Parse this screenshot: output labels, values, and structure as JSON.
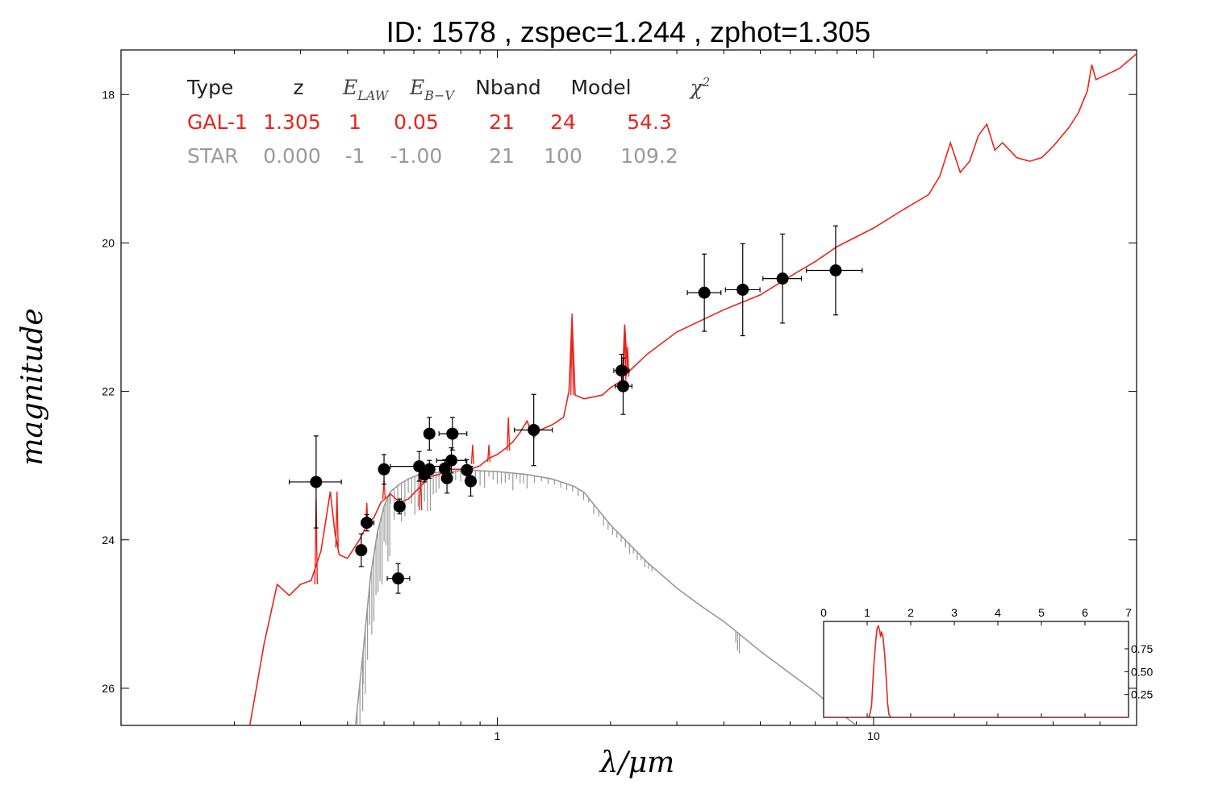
{
  "title": "ID:  1578  , zspec=1.244 , zphot=1.305",
  "chart_data": {
    "type": "scatter",
    "xlabel": "λ/μm",
    "ylabel": "magnitude",
    "xscale": "log",
    "xlim": [
      0.1,
      50
    ],
    "ylim": [
      26.5,
      17.4
    ],
    "y_inverted": true,
    "xticks": [
      {
        "value": 1,
        "label": "1"
      },
      {
        "value": 10,
        "label": "10"
      }
    ],
    "yticks": [
      {
        "value": 18,
        "label": "18"
      },
      {
        "value": 20,
        "label": "20"
      },
      {
        "value": 22,
        "label": "22"
      },
      {
        "value": 24,
        "label": "24"
      },
      {
        "value": 26,
        "label": "26"
      }
    ],
    "grid": false,
    "fit_table": {
      "headers": [
        "Type",
        "z",
        "E_LAW",
        "E_B-V",
        "Nband",
        "Model",
        "χ²"
      ],
      "header_math": {
        "elaw_base": "E",
        "elaw_sub": "LAW",
        "ebv_base": "E",
        "ebv_sub": "B−V",
        "chi_base": "χ",
        "chi_sup": "2"
      },
      "rows": [
        {
          "color": "#e8241c",
          "values": [
            "GAL-1",
            "1.305",
            "1",
            "0.05",
            "21",
            "24",
            "54.3"
          ]
        },
        {
          "color": "#999999",
          "values": [
            "STAR",
            "0.000",
            "-1",
            "-1.00",
            "21",
            "100",
            "109.2"
          ]
        }
      ]
    },
    "observations": [
      {
        "x": 0.33,
        "y": 23.22,
        "xerr": [
          0.05,
          0.055
        ],
        "yerr": 0.62
      },
      {
        "x": 0.435,
        "y": 24.14,
        "xerr": [
          0.01,
          0.01
        ],
        "yerr": 0.22
      },
      {
        "x": 0.45,
        "y": 23.77,
        "xerr": [
          0.015,
          0.02
        ],
        "yerr": 0.11
      },
      {
        "x": 0.5,
        "y": 23.05,
        "xerr": [
          0.01,
          0.01
        ],
        "yerr": 0.2
      },
      {
        "x": 0.545,
        "y": 24.52,
        "xerr": [
          0.035,
          0.04
        ],
        "yerr": 0.2
      },
      {
        "x": 0.55,
        "y": 23.55,
        "xerr": [
          0.01,
          0.01
        ],
        "yerr": 0.1
      },
      {
        "x": 0.62,
        "y": 23.01,
        "xerr": [
          0.1,
          0.1
        ],
        "yerr": 0.2
      },
      {
        "x": 0.64,
        "y": 23.12,
        "xerr": [
          0.02,
          0.02
        ],
        "yerr": 0.1
      },
      {
        "x": 0.66,
        "y": 23.05,
        "xerr": [
          0.02,
          0.02
        ],
        "yerr": 0.12
      },
      {
        "x": 0.66,
        "y": 22.57,
        "xerr": [
          0.02,
          0.02
        ],
        "yerr": 0.22
      },
      {
        "x": 0.725,
        "y": 23.04,
        "xerr": [
          0.02,
          0.02
        ],
        "yerr": 0.12
      },
      {
        "x": 0.735,
        "y": 23.17,
        "xerr": [
          0.02,
          0.02
        ],
        "yerr": 0.2
      },
      {
        "x": 0.755,
        "y": 22.93,
        "xerr": [
          0.065,
          0.07
        ],
        "yerr": 0.17
      },
      {
        "x": 0.76,
        "y": 22.57,
        "xerr": [
          0.06,
          0.07
        ],
        "yerr": 0.22
      },
      {
        "x": 0.83,
        "y": 23.06,
        "xerr": [
          0.02,
          0.02
        ],
        "yerr": 0.14
      },
      {
        "x": 0.85,
        "y": 23.21,
        "xerr": [
          0.02,
          0.02
        ],
        "yerr": 0.2
      },
      {
        "x": 1.25,
        "y": 22.52,
        "xerr": [
          0.14,
          0.15
        ],
        "yerr": 0.48
      },
      {
        "x": 2.14,
        "y": 21.72,
        "xerr": [
          0.1,
          0.1
        ],
        "yerr": 0.22
      },
      {
        "x": 2.16,
        "y": 21.93,
        "xerr": [
          0.1,
          0.12
        ],
        "yerr": 0.38
      },
      {
        "x": 3.55,
        "y": 20.67,
        "xerr": [
          0.35,
          0.38
        ],
        "yerr": 0.52
      },
      {
        "x": 4.49,
        "y": 20.63,
        "xerr": [
          0.45,
          0.5
        ],
        "yerr": 0.62
      },
      {
        "x": 5.73,
        "y": 20.48,
        "xerr": [
          0.65,
          0.7
        ],
        "yerr": 0.6
      },
      {
        "x": 7.93,
        "y": 20.37,
        "xerr": [
          1.3,
          1.4
        ],
        "yerr": 0.6
      }
    ],
    "galaxy_model": {
      "name": "GAL-1",
      "color": "#e8241c",
      "points": [
        [
          0.22,
          26.5
        ],
        [
          0.24,
          25.4
        ],
        [
          0.26,
          24.6
        ],
        [
          0.28,
          24.75
        ],
        [
          0.3,
          24.6
        ],
        [
          0.32,
          24.55
        ],
        [
          0.34,
          24.15
        ],
        [
          0.36,
          23.35
        ],
        [
          0.37,
          23.9
        ],
        [
          0.38,
          24.2
        ],
        [
          0.4,
          24.25
        ],
        [
          0.43,
          24.0
        ],
        [
          0.45,
          23.8
        ],
        [
          0.47,
          23.7
        ],
        [
          0.49,
          23.5
        ],
        [
          0.52,
          23.38
        ],
        [
          0.55,
          23.5
        ],
        [
          0.58,
          23.45
        ],
        [
          0.62,
          23.3
        ],
        [
          0.66,
          23.15
        ],
        [
          0.7,
          23.12
        ],
        [
          0.75,
          23.05
        ],
        [
          0.8,
          23.05
        ],
        [
          0.85,
          23.05
        ],
        [
          0.9,
          23.0
        ],
        [
          0.95,
          22.9
        ],
        [
          1.0,
          22.85
        ],
        [
          1.05,
          22.77
        ],
        [
          1.1,
          22.68
        ],
        [
          1.15,
          22.55
        ],
        [
          1.2,
          22.4
        ],
        [
          1.25,
          22.62
        ],
        [
          1.3,
          22.52
        ],
        [
          1.4,
          22.45
        ],
        [
          1.5,
          22.35
        ],
        [
          1.55,
          22.0
        ],
        [
          1.58,
          21.0
        ],
        [
          1.61,
          22.05
        ],
        [
          1.7,
          22.1
        ],
        [
          1.9,
          22.05
        ],
        [
          2.0,
          21.95
        ],
        [
          2.15,
          21.85
        ],
        [
          2.18,
          21.1
        ],
        [
          2.22,
          21.75
        ],
        [
          2.5,
          21.5
        ],
        [
          3.0,
          21.2
        ],
        [
          4.0,
          20.9
        ],
        [
          5.0,
          20.7
        ],
        [
          6.0,
          20.45
        ],
        [
          7.0,
          20.25
        ],
        [
          8.0,
          20.05
        ],
        [
          10.0,
          19.8
        ],
        [
          12.0,
          19.55
        ],
        [
          14.0,
          19.35
        ],
        [
          15.0,
          19.1
        ],
        [
          16.0,
          18.65
        ],
        [
          17.0,
          19.05
        ],
        [
          18.0,
          18.9
        ],
        [
          19.0,
          18.55
        ],
        [
          20.0,
          18.4
        ],
        [
          21.0,
          18.75
        ],
        [
          22.0,
          18.65
        ],
        [
          23.0,
          18.75
        ],
        [
          24.0,
          18.85
        ],
        [
          26.0,
          18.9
        ],
        [
          28.0,
          18.85
        ],
        [
          30.0,
          18.7
        ],
        [
          33.0,
          18.45
        ],
        [
          35.0,
          18.25
        ],
        [
          37.0,
          17.95
        ],
        [
          38.0,
          17.6
        ],
        [
          39.0,
          17.8
        ],
        [
          45.0,
          17.65
        ],
        [
          50.0,
          17.45
        ]
      ],
      "lines": [
        [
          0.33,
          24.6,
          23.45
        ],
        [
          0.375,
          24.1,
          23.35
        ],
        [
          0.45,
          23.85,
          23.5
        ],
        [
          0.5,
          23.45,
          23.2
        ],
        [
          0.625,
          23.6,
          23.1
        ],
        [
          0.86,
          22.98,
          22.72
        ],
        [
          0.95,
          22.95,
          22.72
        ],
        [
          1.07,
          22.8,
          22.35
        ],
        [
          1.58,
          22.05,
          20.95
        ],
        [
          2.18,
          21.85,
          21.1
        ],
        [
          2.22,
          21.8,
          21.4
        ]
      ]
    },
    "star_model": {
      "name": "STAR",
      "color": "#999999",
      "points": [
        [
          0.42,
          26.5
        ],
        [
          0.44,
          25.5
        ],
        [
          0.46,
          24.5
        ],
        [
          0.48,
          23.9
        ],
        [
          0.5,
          23.55
        ],
        [
          0.52,
          23.35
        ],
        [
          0.55,
          23.25
        ],
        [
          0.58,
          23.18
        ],
        [
          0.62,
          23.12
        ],
        [
          0.66,
          23.1
        ],
        [
          0.7,
          23.09
        ],
        [
          0.75,
          23.08
        ],
        [
          0.8,
          23.07
        ],
        [
          0.85,
          23.06
        ],
        [
          0.9,
          23.07
        ],
        [
          1.0,
          23.08
        ],
        [
          1.2,
          23.12
        ],
        [
          1.4,
          23.18
        ],
        [
          1.6,
          23.28
        ],
        [
          1.7,
          23.36
        ],
        [
          2.0,
          23.8
        ],
        [
          2.5,
          24.3
        ],
        [
          3.0,
          24.65
        ],
        [
          3.5,
          24.9
        ],
        [
          4.0,
          25.1
        ],
        [
          5.0,
          25.5
        ],
        [
          6.0,
          25.8
        ],
        [
          7.0,
          26.05
        ],
        [
          8.0,
          26.3
        ],
        [
          9.0,
          26.5
        ]
      ],
      "absorption": [
        [
          0.395,
          0.44,
          0.0073,
          1.6
        ],
        [
          0.44,
          0.52,
          0.006,
          1.1
        ],
        [
          0.52,
          0.7,
          0.012,
          0.55
        ],
        [
          0.7,
          1.2,
          0.025,
          0.25
        ],
        [
          1.2,
          2.6,
          0.055,
          0.15
        ],
        [
          4.3,
          4.4,
          0.05,
          0.3
        ]
      ]
    },
    "inset": {
      "type": "area",
      "color": "#e8241c",
      "xlim": [
        0,
        7
      ],
      "ylim": [
        0,
        1.05
      ],
      "xticks": [
        0,
        1,
        2,
        3,
        4,
        5,
        6,
        7
      ],
      "yticks": [
        {
          "value": 0.25,
          "label": "0.25"
        },
        {
          "value": 0.5,
          "label": "0.50"
        },
        {
          "value": 0.75,
          "label": "0.75"
        }
      ],
      "pdf": [
        [
          0,
          0
        ],
        [
          1.0,
          0
        ],
        [
          1.05,
          0.01
        ],
        [
          1.1,
          0.12
        ],
        [
          1.15,
          0.55
        ],
        [
          1.2,
          0.85
        ],
        [
          1.23,
          0.98
        ],
        [
          1.26,
          1.0
        ],
        [
          1.29,
          0.94
        ],
        [
          1.31,
          0.88
        ],
        [
          1.33,
          0.93
        ],
        [
          1.36,
          0.9
        ],
        [
          1.4,
          0.7
        ],
        [
          1.44,
          0.4
        ],
        [
          1.47,
          0.15
        ],
        [
          1.5,
          0.03
        ],
        [
          1.55,
          0
        ],
        [
          7,
          0
        ]
      ]
    }
  }
}
